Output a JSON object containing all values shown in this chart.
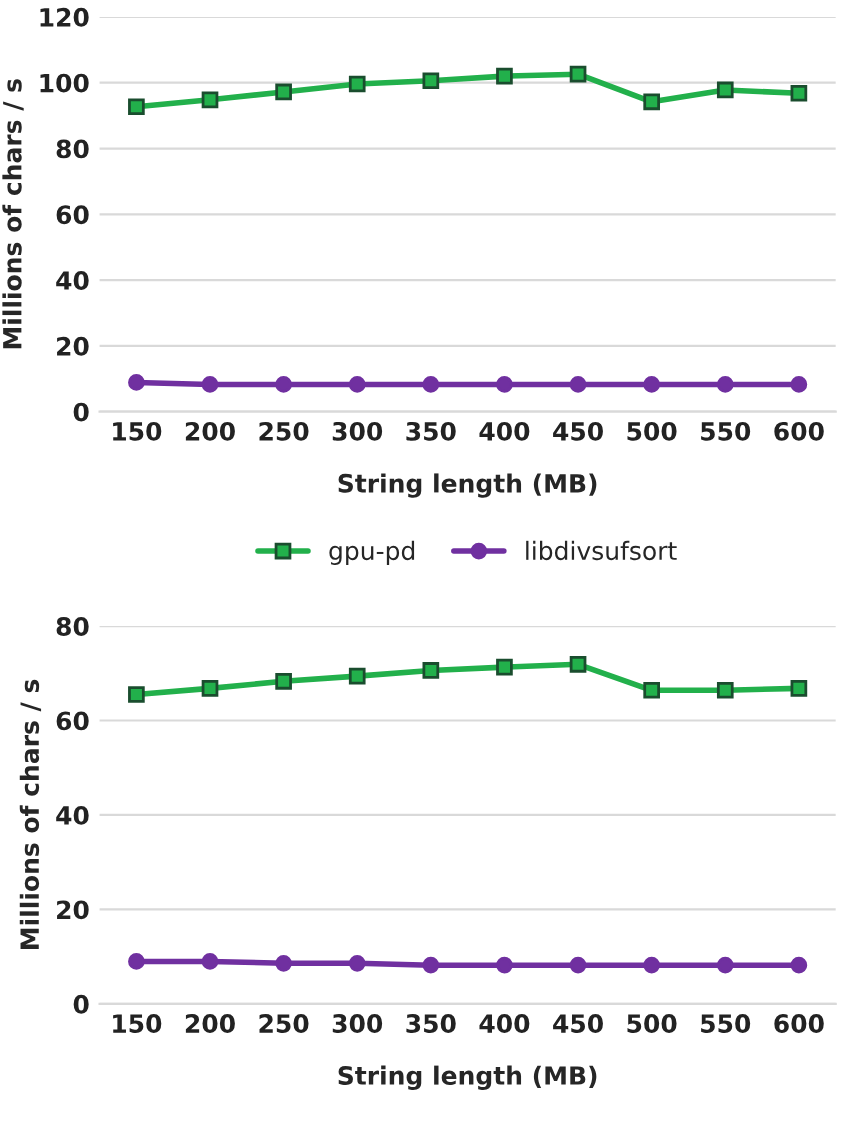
{
  "chart_data": [
    {
      "type": "line",
      "xlabel": "String length (MB)",
      "ylabel": "Millions of chars / s",
      "categories": [
        "150",
        "200",
        "250",
        "300",
        "350",
        "400",
        "450",
        "500",
        "550",
        "600"
      ],
      "series": [
        {
          "name": "gpu-pd",
          "color": "#22b04b",
          "marker": "square",
          "values": [
            92.7,
            94.8,
            97.2,
            99.6,
            100.6,
            102,
            102.6,
            94.2,
            97.8,
            96.8
          ]
        },
        {
          "name": "libdivsufsort",
          "color": "#7030a0",
          "marker": "circle",
          "values": [
            8.9,
            8.3,
            8.3,
            8.3,
            8.3,
            8.3,
            8.3,
            8.3,
            8.3,
            8.3
          ]
        }
      ],
      "ylim": [
        0,
        120
      ],
      "yticks": [
        0,
        20,
        40,
        60,
        80,
        100,
        120
      ],
      "grid": "y",
      "legend": "bottom"
    },
    {
      "type": "line",
      "xlabel": "String length (MB)",
      "ylabel": "Millions of chars / s",
      "categories": [
        "150",
        "200",
        "250",
        "300",
        "350",
        "400",
        "450",
        "500",
        "550",
        "600"
      ],
      "series": [
        {
          "color": "#22b04b",
          "marker": "square",
          "values": [
            65.5,
            66.8,
            68.3,
            69.4,
            70.6,
            71.3,
            71.9,
            66.4,
            66.4,
            66.8
          ]
        },
        {
          "color": "#7030a0",
          "marker": "circle",
          "values": [
            9.0,
            9.0,
            8.6,
            8.6,
            8.2,
            8.2,
            8.2,
            8.2,
            8.2,
            8.2
          ]
        }
      ],
      "ylim": [
        0,
        80
      ],
      "yticks": [
        0,
        20,
        40,
        60,
        80
      ],
      "grid": "y"
    }
  ]
}
